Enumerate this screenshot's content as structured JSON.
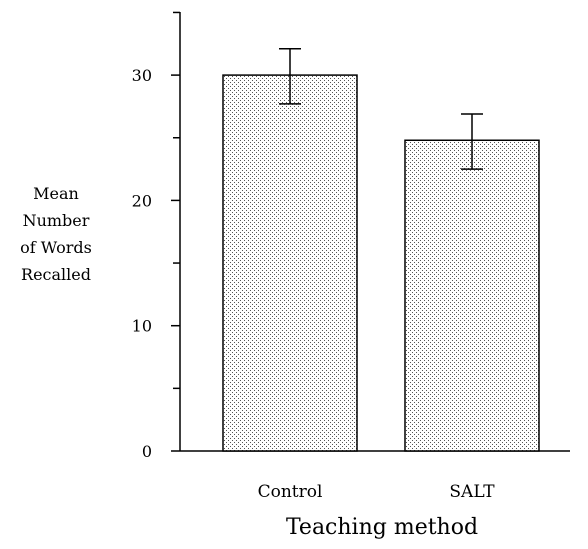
{
  "chart_data": {
    "type": "bar",
    "categories": [
      "Control",
      "SALT"
    ],
    "values": [
      30,
      24.8
    ],
    "error_bars": [
      {
        "low": 27.7,
        "high": 32.1
      },
      {
        "low": 22.5,
        "high": 26.9
      }
    ],
    "title": "",
    "xlabel": "Teaching method",
    "ylabel_lines": [
      "Mean",
      "Number",
      "of Words",
      "Recalled"
    ],
    "y_ticks": [
      0,
      10,
      20,
      30
    ],
    "y_tick_labels": [
      "0",
      "10",
      "20",
      "30"
    ],
    "ylim": [
      0,
      35
    ],
    "grid": false,
    "bar_fill": "stippled grey"
  }
}
